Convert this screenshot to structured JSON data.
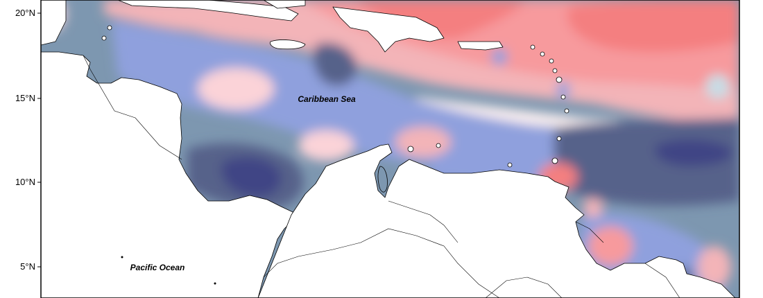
{
  "map": {
    "axis": {
      "lat_ticks": [
        "20°N",
        "15°N",
        "10°N",
        "5°N"
      ]
    },
    "labels": {
      "caribbean": "Caribbean Sea",
      "pacific": "Pacific Ocean"
    },
    "colors": {
      "land": "#ffffff",
      "coast": "#000000",
      "deep_blue": "#3f4585",
      "dark_slate": "#57628a",
      "slate": "#7d97b0",
      "periwinkle": "#8fa0dd",
      "pale_blue": "#c8dce5",
      "near_white": "#fdf1f1",
      "pale_pink": "#fbd3d8",
      "pink": "#f3b4b8",
      "salmon": "#f79a9d",
      "red": "#f47f80"
    }
  }
}
